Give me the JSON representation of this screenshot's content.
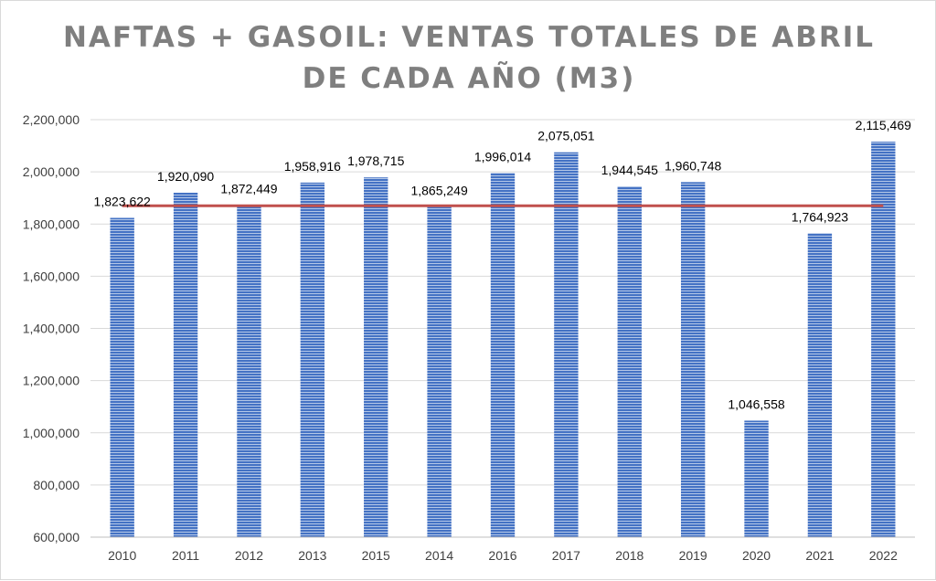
{
  "chart_data": {
    "type": "bar",
    "title_line1": "NAFTAS + GASOIL: VENTAS TOTALES DE ABRIL",
    "title_line2": "DE CADA AÑO (M3)",
    "categories": [
      "2010",
      "2011",
      "2012",
      "2013",
      "2015",
      "2014",
      "2016",
      "2017",
      "2018",
      "2019",
      "2020",
      "2021",
      "2022"
    ],
    "values": [
      1823622,
      1920090,
      1872449,
      1958916,
      1978715,
      1865249,
      1996014,
      2075051,
      1944545,
      1960748,
      1046558,
      1764923,
      2115469
    ],
    "data_labels": [
      "1,823,622",
      "1,920,090",
      "1,872,449",
      "1,958,916",
      "1,978,715",
      "1,865,249",
      "1,996,014",
      "2,075,051",
      "1,944,545",
      "1,960,748",
      "1,046,558",
      "1,764,923",
      "2,115,469"
    ],
    "y_ticks": [
      600000,
      800000,
      1000000,
      1200000,
      1400000,
      1600000,
      1800000,
      2000000,
      2200000
    ],
    "y_tick_labels": [
      "600,000",
      "800,000",
      "1,000,000",
      "1,200,000",
      "1,400,000",
      "1,600,000",
      "1,800,000",
      "2,000,000",
      "2,200,000"
    ],
    "ylim": [
      600000,
      2200000
    ],
    "reference_line": {
      "value": 1870000
    },
    "xlabel": "",
    "ylabel": "",
    "grid": true,
    "colors": {
      "bar": "#4472c4",
      "reference_line": "#c0504d",
      "grid": "#d9d9d9",
      "title": "#7f7f7f"
    }
  }
}
